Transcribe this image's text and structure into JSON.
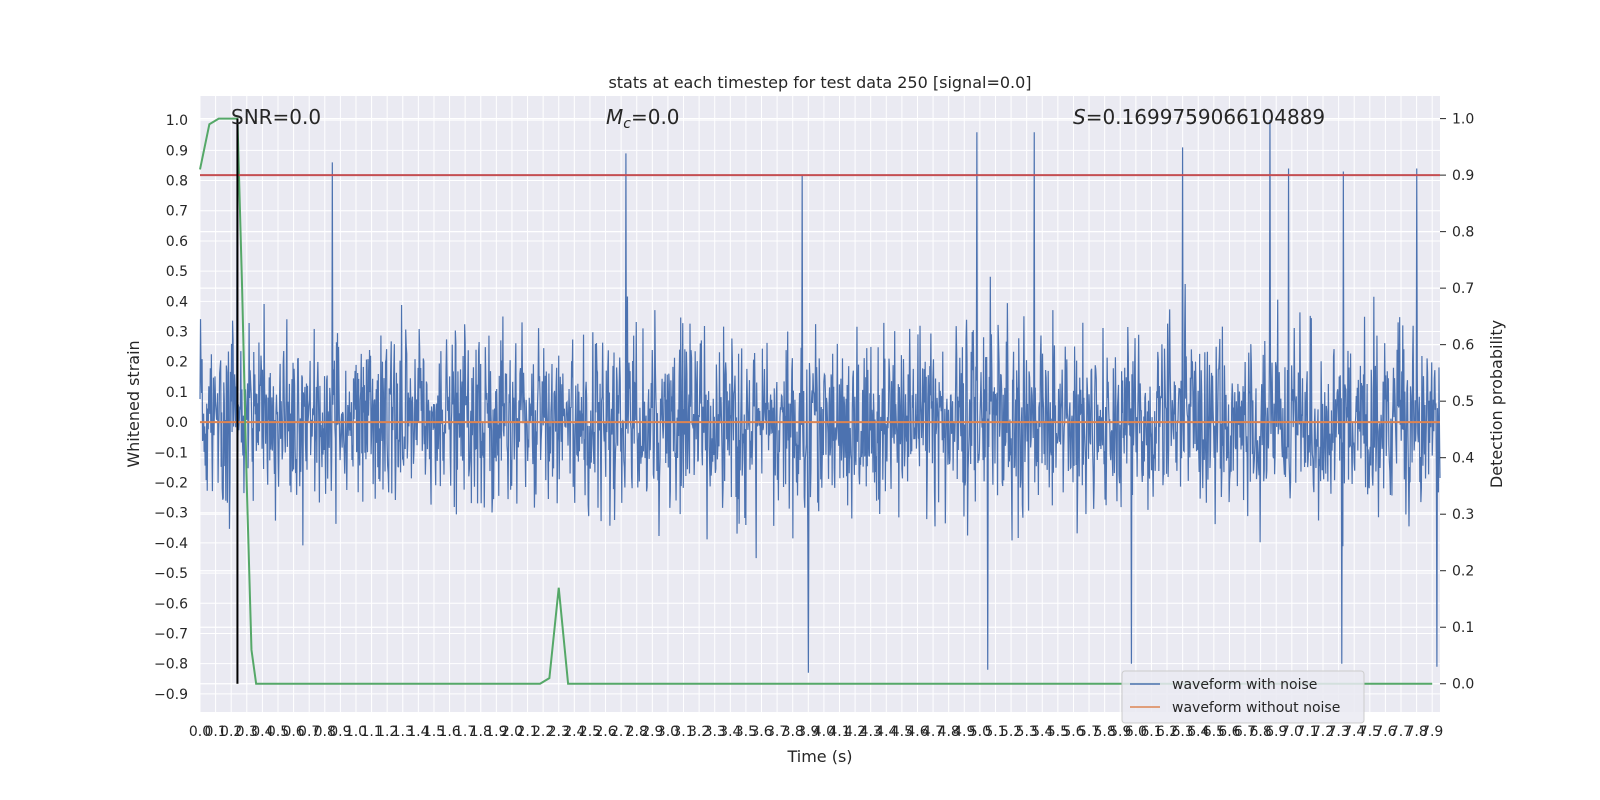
{
  "chart_data": {
    "type": "line",
    "title": "stats at each timestep for test data 250 [signal=0.0]",
    "xlabel": "Time (s)",
    "ylabel": "Whitened strain",
    "y2label": "Detection probability",
    "xlim": [
      0.0,
      7.95
    ],
    "ylim": [
      -0.96,
      1.08
    ],
    "y2lim": [
      -0.05,
      1.04
    ],
    "grid": true,
    "x_tick_step": 0.1,
    "x_tick_labels": [
      "0.0",
      "0.1",
      "0.2",
      "0.3",
      "0.4",
      "0.5",
      "0.6",
      "0.7",
      "0.8",
      "0.9",
      "1.0",
      "1.1",
      "1.2",
      "1.3",
      "1.4",
      "1.5",
      "1.6",
      "1.7",
      "1.8",
      "1.9",
      "2.0",
      "2.1",
      "2.2",
      "2.3",
      "2.4",
      "2.5",
      "2.6",
      "2.7",
      "2.8",
      "2.9",
      "3.0",
      "3.1",
      "3.2",
      "3.3",
      "3.4",
      "3.5",
      "3.6",
      "3.7",
      "3.8",
      "3.9",
      "4.0",
      "4.1",
      "4.2",
      "4.3",
      "4.4",
      "4.5",
      "4.6",
      "4.7",
      "4.8",
      "4.9",
      "5.0",
      "5.1",
      "5.2",
      "5.3",
      "5.4",
      "5.5",
      "5.6",
      "5.7",
      "5.8",
      "5.9",
      "6.0",
      "6.1",
      "6.2",
      "6.3",
      "6.4",
      "6.5",
      "6.6",
      "6.7",
      "6.8",
      "6.9",
      "7.0",
      "7.1",
      "7.2",
      "7.3",
      "7.4",
      "7.5",
      "7.6",
      "7.7",
      "7.8",
      "7.9"
    ],
    "y_ticks": [
      1.0,
      0.9,
      0.8,
      0.7,
      0.6,
      0.5,
      0.4,
      0.3,
      0.2,
      0.1,
      0.0,
      -0.1,
      -0.2,
      -0.3,
      -0.4,
      -0.5,
      -0.6,
      -0.7,
      -0.8,
      -0.9
    ],
    "y_tick_labels": [
      "1.0",
      "0.9",
      "0.8",
      "0.7",
      "0.6",
      "0.5",
      "0.4",
      "0.3",
      "0.2",
      "0.1",
      "0.0",
      "−0.1",
      "−0.2",
      "−0.3",
      "−0.4",
      "−0.5",
      "−0.6",
      "−0.7",
      "−0.8",
      "−0.9"
    ],
    "y2_ticks": [
      1.0,
      0.9,
      0.8,
      0.7,
      0.6,
      0.5,
      0.4,
      0.3,
      0.2,
      0.1,
      0.0
    ],
    "y2_tick_labels": [
      "1.0",
      "0.9",
      "0.8",
      "0.7",
      "0.6",
      "0.5",
      "0.4",
      "0.3",
      "0.2",
      "0.1",
      "0.0"
    ],
    "annotations": {
      "snr": "SNR=0.0",
      "mc_symbol": "M",
      "mc_subscript": "c",
      "mc_value": "=0.0",
      "s_symbol": "S",
      "s_value": "=0.1699759066104889"
    },
    "threshold_line": {
      "axis": "y2",
      "value": 0.9,
      "color": "#c44e52"
    },
    "marker_line": {
      "x": 0.24,
      "y2_from": 0.0,
      "y2_to": 1.0,
      "color": "#000000"
    },
    "series": [
      {
        "name": "waveform with noise",
        "color": "#4c72b0",
        "axis": "y",
        "envelope": {
          "typical_upper": [
            0.25,
            0.6
          ],
          "typical_lower": [
            -0.25,
            -0.6
          ]
        },
        "notable_peaks": [
          {
            "x": 0.24,
            "y": 1.0
          },
          {
            "x": 0.85,
            "y": 0.86
          },
          {
            "x": 2.73,
            "y": 0.89
          },
          {
            "x": 3.86,
            "y": 0.82
          },
          {
            "x": 4.98,
            "y": 0.96
          },
          {
            "x": 5.35,
            "y": 0.96
          },
          {
            "x": 6.3,
            "y": 0.91
          },
          {
            "x": 6.86,
            "y": 1.0
          },
          {
            "x": 6.98,
            "y": 0.84
          },
          {
            "x": 7.33,
            "y": 0.83
          },
          {
            "x": 7.8,
            "y": 0.84
          }
        ],
        "notable_troughs": [
          {
            "x": 3.9,
            "y": -0.83
          },
          {
            "x": 5.05,
            "y": -0.82
          },
          {
            "x": 5.97,
            "y": -0.8
          },
          {
            "x": 7.32,
            "y": -0.8
          },
          {
            "x": 7.93,
            "y": -0.81
          }
        ]
      },
      {
        "name": "waveform without noise",
        "color": "#dd8452",
        "axis": "y",
        "x": [
          0.0,
          7.95
        ],
        "y": [
          0.0,
          0.0
        ]
      },
      {
        "color": "#55a868",
        "axis": "y2",
        "x": [
          0.0,
          0.06,
          0.12,
          0.18,
          0.24,
          0.27,
          0.3,
          0.33,
          0.36,
          0.42,
          1.0,
          2.0,
          2.18,
          2.24,
          2.3,
          2.36,
          2.42,
          3.0,
          5.0,
          7.0,
          7.9
        ],
        "y": [
          0.91,
          0.99,
          1.0,
          1.0,
          1.0,
          0.7,
          0.35,
          0.06,
          0.0,
          0.0,
          0.0,
          0.0,
          0.0,
          0.01,
          0.17,
          0.0,
          0.0,
          0.0,
          0.0,
          0.0,
          0.0
        ]
      }
    ],
    "legend": {
      "placement": "lower-right",
      "entries": [
        {
          "label": "waveform with noise",
          "color": "#4c72b0"
        },
        {
          "label": "waveform without noise",
          "color": "#dd8452"
        }
      ]
    },
    "colors": {
      "axes_background": "#eaeaf2",
      "grid": "#ffffff",
      "noise": "#4c72b0",
      "clean": "#dd8452",
      "probability": "#55a868",
      "threshold": "#c44e52",
      "marker": "#000000"
    }
  }
}
